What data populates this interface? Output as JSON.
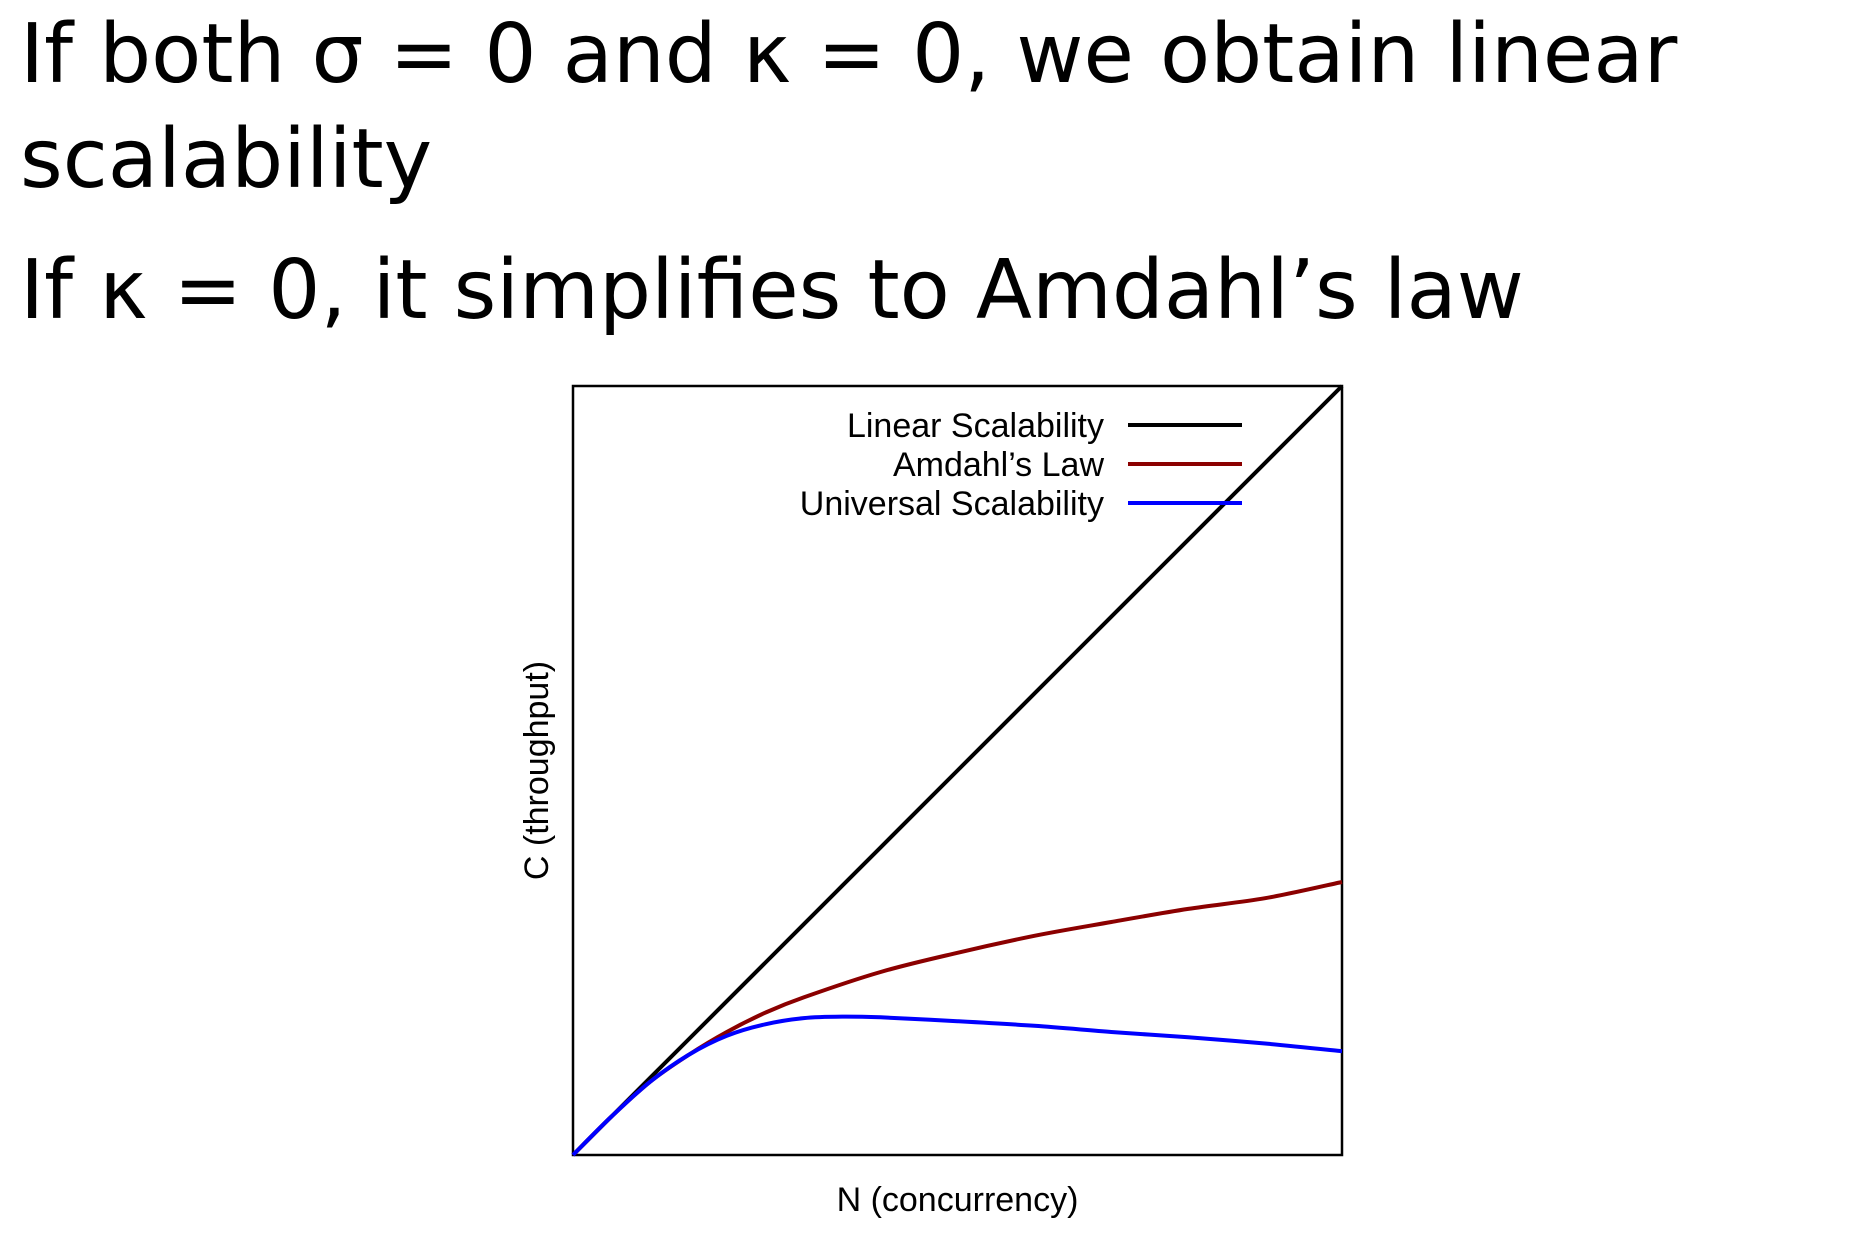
{
  "text": {
    "line1": "If both σ = 0 and κ = 0, we obtain linear",
    "line2": "scalability",
    "line3": "If κ = 0, it simplifies to Amdahl’s law"
  },
  "chart_data": {
    "type": "line",
    "title": "",
    "xlabel": "N (concurrency)",
    "ylabel": "C (throughput)",
    "grid": false,
    "legend_position": "top-right",
    "xlim": [
      0,
      100
    ],
    "ylim": [
      0,
      100
    ],
    "series": [
      {
        "name": "Linear Scalability",
        "color": "#000000",
        "x": [
          0,
          10,
          20,
          30,
          40,
          50,
          60,
          70,
          80,
          90,
          100
        ],
        "y": [
          0,
          10,
          20,
          30,
          40,
          50,
          60,
          70,
          80,
          90,
          100
        ]
      },
      {
        "name": "Amdahl’s Law",
        "color": "#8b0000",
        "x": [
          0,
          5,
          10,
          15,
          20,
          25,
          30,
          40,
          50,
          60,
          70,
          80,
          90,
          100
        ],
        "y": [
          0,
          5,
          9.5,
          13,
          16,
          18.5,
          20.5,
          23.8,
          26.3,
          28.5,
          30.3,
          32,
          33.4,
          35.5
        ]
      },
      {
        "name": "Universal Scalability",
        "color": "#0000ff",
        "x": [
          0,
          5,
          10,
          15,
          20,
          25,
          30,
          35,
          40,
          50,
          60,
          70,
          80,
          90,
          100
        ],
        "y": [
          0,
          5,
          9.5,
          13,
          15.5,
          17,
          17.8,
          18,
          17.9,
          17.4,
          16.8,
          16,
          15.3,
          14.5,
          13.5
        ]
      }
    ]
  }
}
